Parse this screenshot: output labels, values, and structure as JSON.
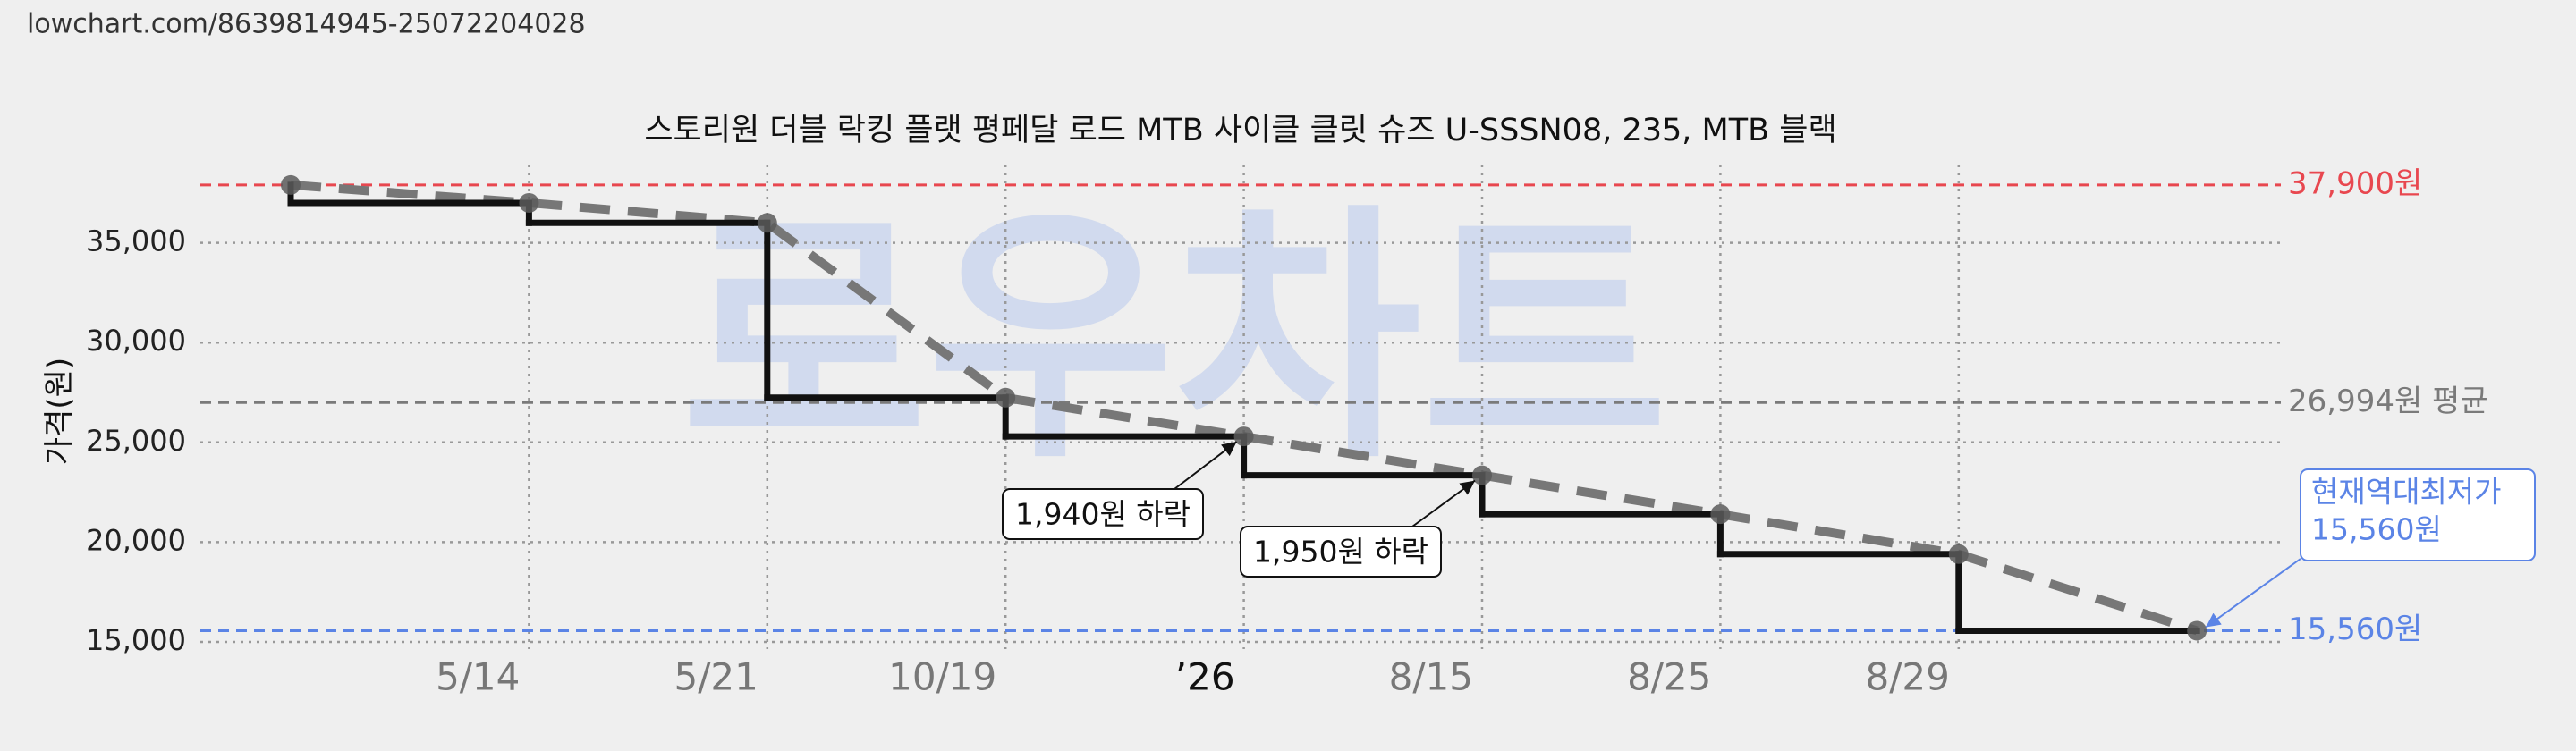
{
  "header": "lowchart.com/8639814945-25072204028",
  "chart_data": {
    "type": "step-line",
    "title": "스토리원 더블 락킹 플랫 평페달 로드 MTB 사이클 클릿 슈즈 U-SSSN08, 235, MTB 블랙",
    "watermark": "로우차트",
    "ylabel": "가격(원)",
    "categories": [
      null,
      "5/14",
      "5/21",
      "10/19",
      "’26",
      "8/15",
      "8/25",
      "8/29",
      null
    ],
    "series": [
      {
        "name": "가격",
        "color": "#111111",
        "trend_color": "#777777",
        "values": [
          37900,
          37000,
          36000,
          27240,
          25300,
          23350,
          21400,
          19400,
          15560
        ]
      }
    ],
    "ylim": [
      14640,
      38925
    ],
    "yticks": [
      {
        "value": 15000,
        "label": "15,000"
      },
      {
        "value": 20000,
        "label": "20,000"
      },
      {
        "value": 25000,
        "label": "25,000"
      },
      {
        "value": 30000,
        "label": "30,000"
      },
      {
        "value": 35000,
        "label": "35,000"
      }
    ],
    "grid": true,
    "reference_lines": [
      {
        "value": 37900,
        "label": "37,900원",
        "color": "#e8474f"
      },
      {
        "value": 26994,
        "label": "26,994원 평균",
        "color": "#7a7a7a"
      },
      {
        "value": 15560,
        "label": "15,560원",
        "color": "#5b84e6"
      }
    ],
    "annotations": [
      "1,940원 하락",
      "1,950원 하락"
    ],
    "callout": {
      "lines": [
        "현재역대최저가",
        "15,560원"
      ],
      "color": "#5b84e6"
    }
  }
}
